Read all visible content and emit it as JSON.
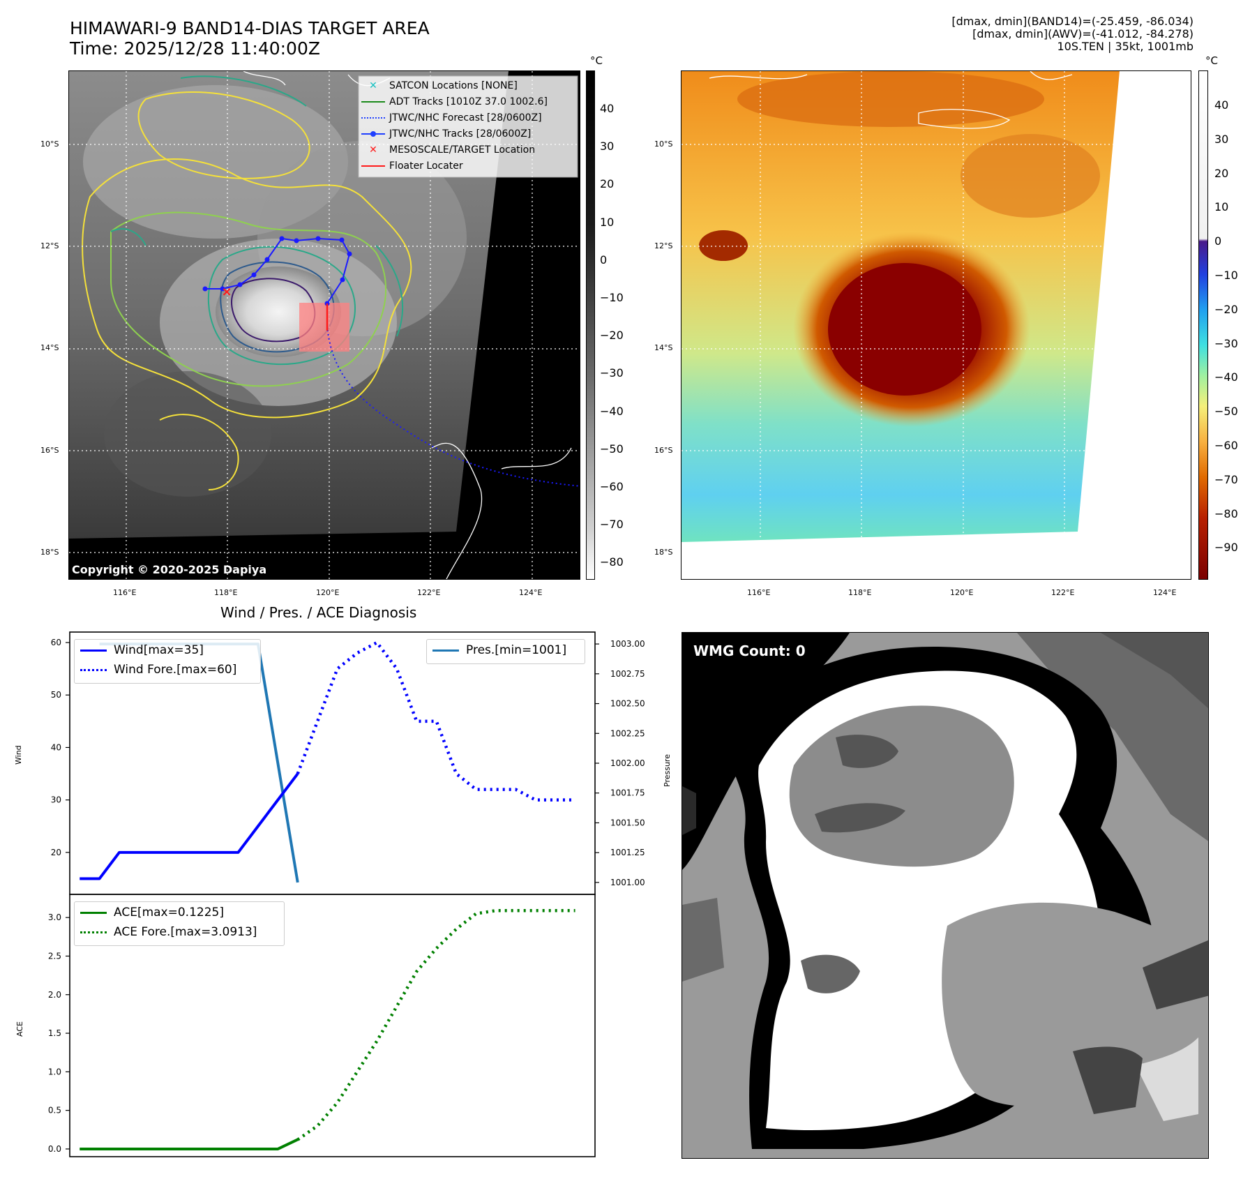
{
  "header": {
    "title_line1": "HIMAWARI-9 BAND14-DIAS TARGET AREA",
    "title_line2": "Time: 2025/12/28 11:40:00Z",
    "stats_line1": "[dmax, dmin](BAND14)=(-25.459, -86.034)",
    "stats_line2": "[dmax, dmin](AWV)=(-41.012, -84.278)",
    "stats_line3": "10S.TEN | 35kt, 1001mb"
  },
  "map": {
    "lat_labels": [
      "10°S",
      "12°S",
      "14°S",
      "16°S",
      "18°S"
    ],
    "lon_labels": [
      "116°E",
      "118°E",
      "120°E",
      "122°E",
      "124°E"
    ],
    "unit": "°C",
    "copyright": "Copyright © 2020-2025 Dapiya",
    "legend": [
      "SATCON Locations [NONE]",
      "ADT Tracks [1010Z 37.0 1002.6]",
      "JTWC/NHC Forecast [28/0600Z]",
      "JTWC/NHC Tracks [28/0600Z]",
      "MESOSCALE/TARGET Location",
      "Floater Locater"
    ],
    "legend_colors": [
      "#17c1c1",
      "#1a8a1a",
      "#1f3fff",
      "#1f3fff",
      "#ff1a1a",
      "#ff1a1a"
    ],
    "gray_colorbar_ticks": [
      "40",
      "30",
      "20",
      "10",
      "0",
      "−10",
      "−20",
      "−30",
      "−40",
      "−50",
      "−60",
      "−70",
      "−80"
    ],
    "color_colorbar_ticks": [
      "40",
      "30",
      "20",
      "10",
      "0",
      "−10",
      "−20",
      "−30",
      "−40",
      "−50",
      "−60",
      "−70",
      "−80",
      "−90"
    ]
  },
  "chart_data": [
    {
      "type": "line",
      "title": "Wind / Pres. / ACE Diagnosis",
      "ylabel": "Wind",
      "ylabel_right": "Pressure",
      "ylim": [
        12,
        62
      ],
      "ylim_right": [
        1000.9,
        1003.1
      ],
      "yticks": [
        "20",
        "30",
        "40",
        "50",
        "60"
      ],
      "yticks_right": [
        "1001.00",
        "1001.25",
        "1001.50",
        "1001.75",
        "1002.00",
        "1002.25",
        "1002.50",
        "1002.75",
        "1003.00"
      ],
      "series": [
        {
          "name": "Wind[max=35]",
          "style": "solid",
          "color": "#0000ff",
          "x": [
            0,
            1,
            2,
            3,
            4,
            5,
            6,
            7,
            8,
            9,
            10,
            11
          ],
          "values": [
            15,
            15,
            20,
            20,
            20,
            20,
            20,
            20,
            20,
            25,
            30,
            35
          ]
        },
        {
          "name": "Wind Fore.[max=60]",
          "style": "dotted",
          "color": "#0000ff",
          "x": [
            11,
            12,
            13,
            14,
            15,
            16,
            17,
            18,
            19,
            20,
            21,
            22,
            23,
            24,
            25
          ],
          "values": [
            35,
            45,
            55,
            58,
            60,
            55,
            45,
            45,
            35,
            32,
            32,
            32,
            30,
            30,
            30
          ]
        },
        {
          "name": "Pres.[min=1001]",
          "style": "solid",
          "color": "#1f77b4",
          "axis": "right",
          "x": [
            1,
            9,
            11
          ],
          "values": [
            1003,
            1003,
            1001
          ]
        }
      ],
      "xlim": [
        -0.5,
        26
      ]
    },
    {
      "type": "line",
      "ylabel": "ACE",
      "ylim": [
        -0.1,
        3.3
      ],
      "yticks": [
        "0.0",
        "0.5",
        "1.0",
        "1.5",
        "2.0",
        "2.5",
        "3.0"
      ],
      "series": [
        {
          "name": "ACE[max=0.1225]",
          "style": "solid",
          "color": "#008000",
          "x": [
            0,
            10,
            11
          ],
          "values": [
            0.0,
            0.0,
            0.1225
          ]
        },
        {
          "name": "ACE Fore.[max=3.0913]",
          "style": "dotted",
          "color": "#008000",
          "x": [
            11,
            12,
            13,
            14,
            15,
            16,
            17,
            18,
            19,
            20,
            21,
            22,
            23,
            24,
            25
          ],
          "values": [
            0.12,
            0.3,
            0.6,
            1.0,
            1.4,
            1.85,
            2.3,
            2.6,
            2.85,
            3.05,
            3.09,
            3.09,
            3.09,
            3.09,
            3.09
          ]
        }
      ],
      "xlim": [
        -0.5,
        26
      ]
    }
  ],
  "wmg": {
    "label": "WMG Count: 0"
  }
}
